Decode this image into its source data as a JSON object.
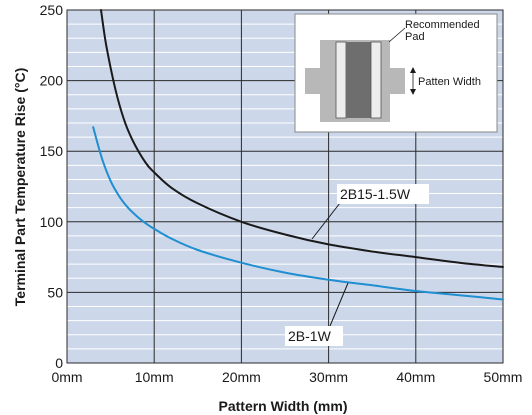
{
  "chart_data": {
    "type": "line",
    "title": "",
    "xlabel": "Pattern Width (mm)",
    "ylabel": "Terminal Part Temperature Rise (°C)",
    "xlim": [
      0,
      50
    ],
    "ylim": [
      0,
      250
    ],
    "x_ticks": [
      0,
      10,
      20,
      30,
      40,
      50
    ],
    "x_tick_labels": [
      "0mm",
      "10mm",
      "20mm",
      "30mm",
      "40mm",
      "50mm"
    ],
    "y_ticks": [
      0,
      50,
      100,
      150,
      200,
      250
    ],
    "y_tick_labels": [
      "0",
      "50",
      "100",
      "150",
      "200",
      "250"
    ],
    "grid": true,
    "series": [
      {
        "name": "2B15-1.5W",
        "color": "#1a1a1a",
        "x": [
          3.9,
          4.5,
          5.5,
          6.5,
          7.5,
          9,
          10,
          12,
          15,
          20,
          25,
          30,
          35,
          40,
          45,
          50
        ],
        "y": [
          250,
          225,
          195,
          173,
          158,
          142,
          135,
          124,
          113,
          100,
          91,
          84,
          79,
          75,
          71,
          68
        ]
      },
      {
        "name": "2B-1W",
        "color": "#1f8fd1",
        "x": [
          3,
          4,
          5,
          6,
          7,
          8,
          9,
          10,
          12,
          15,
          20,
          25,
          30,
          35,
          40,
          45,
          50
        ],
        "y": [
          167,
          145,
          129,
          118,
          110,
          104,
          99,
          95,
          88,
          80,
          71,
          64,
          59,
          55,
          51,
          48,
          45
        ]
      }
    ],
    "annotations": [
      {
        "text": "2B15-1.5W",
        "series": "2B15-1.5W"
      },
      {
        "text": "2B-1W",
        "series": "2B-1W"
      }
    ],
    "inset": {
      "labels": [
        "Recommended",
        "Pad",
        "Patten Width"
      ]
    }
  }
}
